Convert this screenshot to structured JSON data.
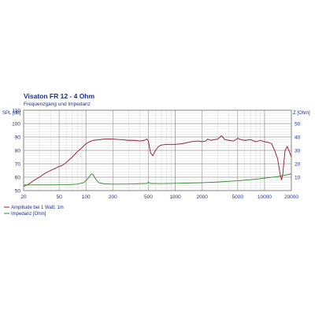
{
  "chart_data": {
    "type": "line",
    "title": "Visaton FR 12 - 4 Ohm",
    "subtitle": "Frequenzgang und Impedanz",
    "left_axis_label": "SPL [dB]",
    "right_axis_label": "Z [Ohm]",
    "x_scale": "log",
    "x_range": [
      20,
      20000
    ],
    "x_ticks": [
      {
        "value": 20,
        "label": "20"
      },
      {
        "value": 50,
        "label": "50"
      },
      {
        "value": 100,
        "label": "100"
      },
      {
        "value": 200,
        "label": "200"
      },
      {
        "value": 500,
        "label": "500"
      },
      {
        "value": 1000,
        "label": "1000"
      },
      {
        "value": 2000,
        "label": "2000"
      },
      {
        "value": 5000,
        "label": "5000"
      },
      {
        "value": 10000,
        "label": "10000"
      },
      {
        "value": 20000,
        "label": "20000"
      }
    ],
    "left_ylim": [
      50,
      110
    ],
    "left_ticks": [
      "50",
      "60",
      "70",
      "80",
      "90",
      "100",
      "110"
    ],
    "right_ylim": [
      0,
      60
    ],
    "right_ticks": [
      "10",
      "20",
      "30",
      "40",
      "50"
    ],
    "grid": true,
    "legend_position": "bottom-left",
    "series": [
      {
        "name": "Amplitude bei 1 Watt, 1m",
        "color": "#8b1a2a",
        "axis": "left",
        "points": [
          [
            20,
            53
          ],
          [
            23,
            55
          ],
          [
            26,
            57.5
          ],
          [
            30,
            60
          ],
          [
            35,
            63
          ],
          [
            40,
            65
          ],
          [
            45,
            66.5
          ],
          [
            50,
            68
          ],
          [
            55,
            69
          ],
          [
            60,
            71
          ],
          [
            70,
            75
          ],
          [
            80,
            79
          ],
          [
            90,
            82
          ],
          [
            100,
            85
          ],
          [
            110,
            86.5
          ],
          [
            120,
            87.5
          ],
          [
            140,
            88
          ],
          [
            160,
            88.5
          ],
          [
            200,
            88.5
          ],
          [
            250,
            88
          ],
          [
            300,
            87.5
          ],
          [
            350,
            87.5
          ],
          [
            400,
            87
          ],
          [
            450,
            87.5
          ],
          [
            480,
            88.5
          ],
          [
            500,
            87
          ],
          [
            530,
            78
          ],
          [
            560,
            76
          ],
          [
            600,
            80
          ],
          [
            650,
            83
          ],
          [
            700,
            84
          ],
          [
            800,
            84.5
          ],
          [
            1000,
            84.5
          ],
          [
            1200,
            85
          ],
          [
            1500,
            86.5
          ],
          [
            1800,
            87
          ],
          [
            2000,
            86.5
          ],
          [
            2200,
            87
          ],
          [
            2300,
            88.5
          ],
          [
            2500,
            87.5
          ],
          [
            3000,
            88.5
          ],
          [
            3300,
            91
          ],
          [
            3600,
            88
          ],
          [
            4000,
            87.5
          ],
          [
            4500,
            87
          ],
          [
            5000,
            89
          ],
          [
            5500,
            88
          ],
          [
            6000,
            87.5
          ],
          [
            7000,
            88
          ],
          [
            8000,
            86.5
          ],
          [
            9000,
            87.5
          ],
          [
            10000,
            86.5
          ],
          [
            11000,
            86
          ],
          [
            12000,
            85
          ],
          [
            13000,
            80
          ],
          [
            14000,
            74
          ],
          [
            15000,
            62
          ],
          [
            15500,
            58
          ],
          [
            16000,
            62
          ],
          [
            17000,
            80
          ],
          [
            18000,
            83
          ],
          [
            19000,
            79
          ],
          [
            20000,
            75
          ]
        ]
      },
      {
        "name": "Impedanz [Ohm]",
        "color": "#2e8b2e",
        "axis": "right",
        "points": [
          [
            20,
            4.2
          ],
          [
            40,
            4.3
          ],
          [
            60,
            4.4
          ],
          [
            80,
            4.8
          ],
          [
            95,
            6
          ],
          [
            105,
            9
          ],
          [
            115,
            12.5
          ],
          [
            120,
            12
          ],
          [
            130,
            8
          ],
          [
            140,
            5.8
          ],
          [
            160,
            5
          ],
          [
            200,
            4.8
          ],
          [
            300,
            4.9
          ],
          [
            480,
            5.3
          ],
          [
            500,
            6.2
          ],
          [
            530,
            5.3
          ],
          [
            700,
            5.2
          ],
          [
            1000,
            5.4
          ],
          [
            2000,
            5.9
          ],
          [
            3000,
            6.4
          ],
          [
            5000,
            7.3
          ],
          [
            8000,
            8.5
          ],
          [
            10000,
            9.3
          ],
          [
            14000,
            10.5
          ],
          [
            17000,
            11.5
          ],
          [
            20000,
            12.5
          ]
        ]
      }
    ]
  }
}
